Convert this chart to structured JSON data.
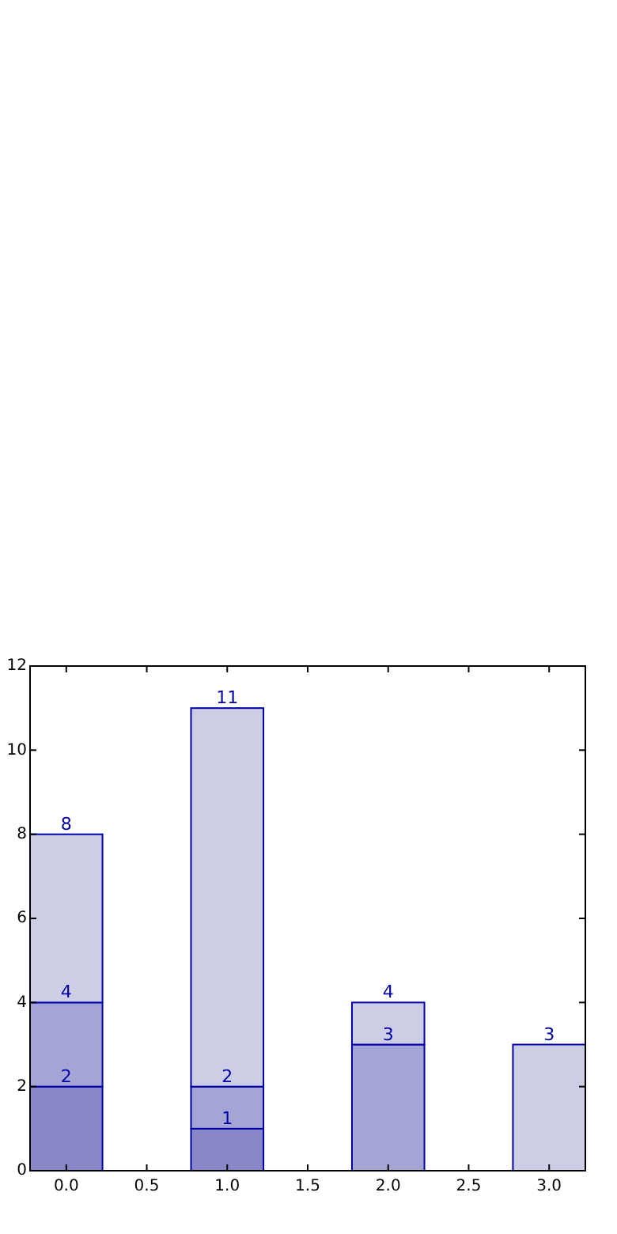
{
  "chart_data": {
    "type": "bar",
    "stacked": true,
    "x": [
      0,
      1,
      2,
      3
    ],
    "series": [
      {
        "color": "#8888c8",
        "values": [
          2,
          1,
          null,
          null
        ]
      },
      {
        "color": "#a5a5d5",
        "values": [
          2,
          1,
          3,
          null
        ]
      },
      {
        "color": "#cdcde5",
        "values": [
          4,
          9,
          1,
          3
        ]
      }
    ],
    "annotations": [
      {
        "text": "2",
        "x": 0,
        "y": 2
      },
      {
        "text": "4",
        "x": 0,
        "y": 4
      },
      {
        "text": "8",
        "x": 0,
        "y": 8
      },
      {
        "text": "1",
        "x": 1,
        "y": 1
      },
      {
        "text": "2",
        "x": 1,
        "y": 2
      },
      {
        "text": "11",
        "x": 1,
        "y": 11
      },
      {
        "text": "3",
        "x": 2,
        "y": 3
      },
      {
        "text": "4",
        "x": 2,
        "y": 4
      },
      {
        "text": "3",
        "x": 3,
        "y": 3
      }
    ],
    "xlim": [
      -0.225,
      3.225
    ],
    "ylim": [
      0,
      12
    ],
    "xticks": [
      {
        "value": 0,
        "label": "0.0"
      },
      {
        "value": 0.5,
        "label": "0.5"
      },
      {
        "value": 1,
        "label": "1.0"
      },
      {
        "value": 1.5,
        "label": "1.5"
      },
      {
        "value": 2,
        "label": "2.0"
      },
      {
        "value": 2.5,
        "label": "2.5"
      },
      {
        "value": 3,
        "label": "3.0"
      }
    ],
    "yticks": [
      0,
      2,
      4,
      6,
      8,
      10,
      12
    ],
    "grid": false
  }
}
